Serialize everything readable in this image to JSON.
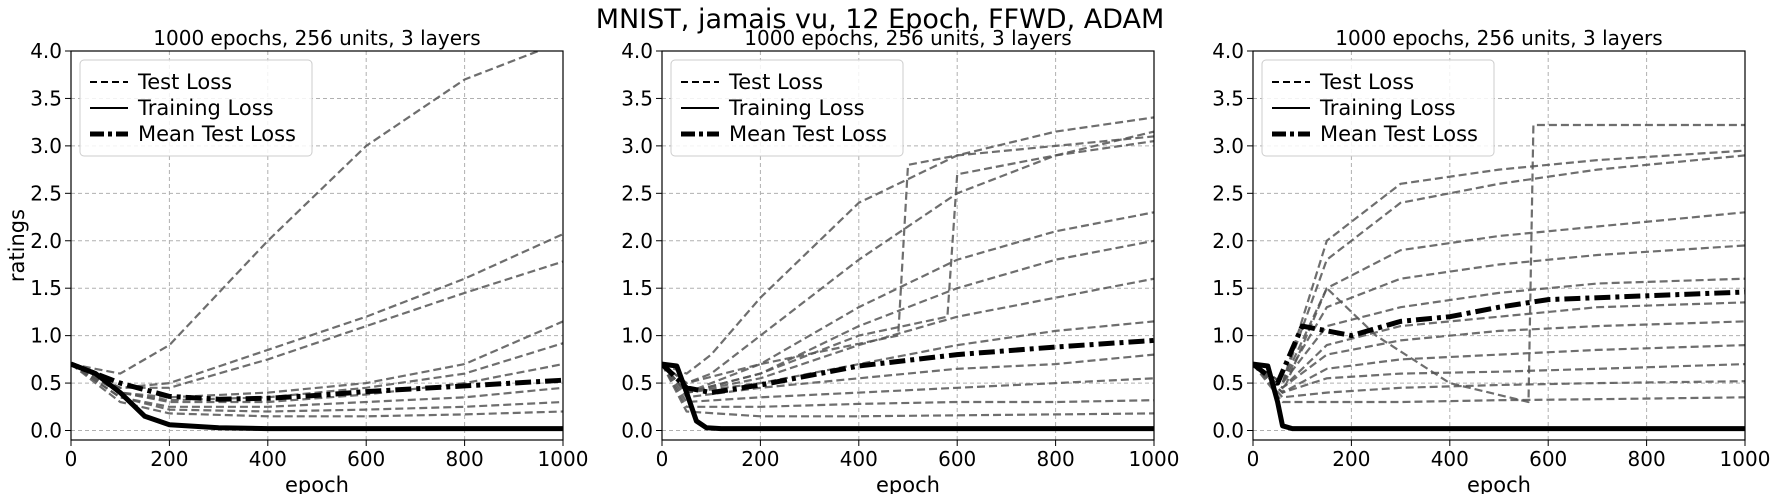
{
  "figure": {
    "title": "MNIST, jamais vu, 12 Epoch, FFWD, ADAM",
    "line_color": "#000000",
    "curve_color": "#555555",
    "grid_color": "#b0b0b0"
  },
  "chart_data": [
    {
      "type": "line",
      "title": "1000 epochs, 256 units, 3 layers",
      "xlabel": "epoch",
      "ylabel": "ratings",
      "xlim": [
        0,
        1000
      ],
      "ylim": [
        -0.1,
        4.0
      ],
      "xticks": [
        "0",
        "200",
        "400",
        "600",
        "800",
        "1000"
      ],
      "yticks": [
        "0.0",
        "0.5",
        "1.0",
        "1.5",
        "2.0",
        "2.5",
        "3.0",
        "3.5",
        "4.0"
      ],
      "grid": true,
      "legend": {
        "placement": "top-left",
        "entries": [
          "Test Loss",
          "Training Loss",
          "Mean Test Loss"
        ]
      },
      "series": [
        {
          "name": "Test Loss",
          "x": [
            0,
            100,
            200,
            400,
            600,
            800,
            1000
          ],
          "y": [
            0.7,
            0.6,
            0.9,
            2.0,
            3.0,
            3.7,
            4.1
          ]
        },
        {
          "name": "Test Loss",
          "x": [
            0,
            100,
            200,
            400,
            600,
            800,
            1000
          ],
          "y": [
            0.7,
            0.45,
            0.5,
            0.85,
            1.2,
            1.6,
            2.07
          ]
        },
        {
          "name": "Test Loss",
          "x": [
            0,
            100,
            200,
            400,
            600,
            800,
            1000
          ],
          "y": [
            0.7,
            0.45,
            0.45,
            0.75,
            1.1,
            1.45,
            1.78
          ]
        },
        {
          "name": "Test Loss",
          "x": [
            0,
            100,
            200,
            400,
            600,
            800,
            1000
          ],
          "y": [
            0.7,
            0.4,
            0.35,
            0.4,
            0.5,
            0.7,
            1.15
          ]
        },
        {
          "name": "Test Loss",
          "x": [
            0,
            100,
            200,
            400,
            600,
            800,
            1000
          ],
          "y": [
            0.7,
            0.4,
            0.32,
            0.35,
            0.45,
            0.6,
            0.92
          ]
        },
        {
          "name": "Test Loss",
          "x": [
            0,
            100,
            200,
            400,
            600,
            800,
            1000
          ],
          "y": [
            0.7,
            0.4,
            0.3,
            0.3,
            0.38,
            0.5,
            0.7
          ]
        },
        {
          "name": "Test Loss",
          "x": [
            0,
            100,
            200,
            400,
            600,
            800,
            1000
          ],
          "y": [
            0.7,
            0.35,
            0.25,
            0.25,
            0.3,
            0.35,
            0.45
          ]
        },
        {
          "name": "Test Loss",
          "x": [
            0,
            100,
            200,
            400,
            600,
            800,
            1000
          ],
          "y": [
            0.7,
            0.35,
            0.22,
            0.2,
            0.22,
            0.25,
            0.3
          ]
        },
        {
          "name": "Test Loss",
          "x": [
            0,
            100,
            200,
            400,
            600,
            800,
            1000
          ],
          "y": [
            0.7,
            0.3,
            0.18,
            0.15,
            0.15,
            0.17,
            0.2
          ]
        },
        {
          "name": "Training Loss",
          "x": [
            0,
            50,
            100,
            150,
            200,
            300,
            400,
            1000
          ],
          "y": [
            0.7,
            0.6,
            0.4,
            0.15,
            0.06,
            0.03,
            0.02,
            0.02
          ]
        },
        {
          "name": "Mean Test Loss",
          "x": [
            0,
            100,
            200,
            300,
            400,
            500,
            600,
            800,
            1000
          ],
          "y": [
            0.7,
            0.5,
            0.36,
            0.33,
            0.34,
            0.37,
            0.41,
            0.47,
            0.53
          ]
        }
      ]
    },
    {
      "type": "line",
      "title": "1000 epochs, 256 units, 3 layers",
      "xlabel": "epoch",
      "ylabel": "",
      "xlim": [
        0,
        1000
      ],
      "ylim": [
        -0.1,
        4.0
      ],
      "xticks": [
        "0",
        "200",
        "400",
        "600",
        "800",
        "1000"
      ],
      "yticks": [
        "0.0",
        "0.5",
        "1.0",
        "1.5",
        "2.0",
        "2.5",
        "3.0",
        "3.5",
        "4.0"
      ],
      "grid": true,
      "legend": {
        "placement": "top-left",
        "entries": [
          "Test Loss",
          "Training Loss",
          "Mean Test Loss"
        ]
      },
      "series": [
        {
          "name": "Test Loss",
          "x": [
            0,
            50,
            100,
            200,
            400,
            600,
            800,
            1000
          ],
          "y": [
            0.7,
            0.6,
            0.8,
            1.4,
            2.4,
            2.9,
            3.15,
            3.3
          ]
        },
        {
          "name": "Test Loss",
          "x": [
            0,
            50,
            100,
            200,
            400,
            600,
            800,
            1000
          ],
          "y": [
            0.7,
            0.5,
            0.6,
            1.0,
            1.8,
            2.5,
            2.9,
            3.15
          ]
        },
        {
          "name": "Test Loss",
          "x": [
            0,
            50,
            200,
            480,
            500,
            600,
            800,
            1000
          ],
          "y": [
            0.7,
            0.5,
            0.7,
            1.0,
            2.8,
            2.9,
            3.0,
            3.1
          ]
        },
        {
          "name": "Test Loss",
          "x": [
            0,
            50,
            200,
            400,
            600,
            800,
            1000
          ],
          "y": [
            0.7,
            0.4,
            0.7,
            1.3,
            1.8,
            2.1,
            2.3
          ]
        },
        {
          "name": "Test Loss",
          "x": [
            0,
            50,
            200,
            400,
            580,
            600,
            800,
            1000
          ],
          "y": [
            0.7,
            0.4,
            0.6,
            1.0,
            1.2,
            2.7,
            2.9,
            3.05
          ]
        },
        {
          "name": "Test Loss",
          "x": [
            0,
            50,
            200,
            400,
            600,
            800,
            1000
          ],
          "y": [
            0.7,
            0.4,
            0.6,
            1.1,
            1.5,
            1.8,
            2.0
          ]
        },
        {
          "name": "Test Loss",
          "x": [
            0,
            50,
            200,
            400,
            600,
            800,
            1000
          ],
          "y": [
            0.7,
            0.4,
            0.55,
            0.9,
            1.2,
            1.4,
            1.6
          ]
        },
        {
          "name": "Test Loss",
          "x": [
            0,
            50,
            200,
            400,
            600,
            800,
            1000
          ],
          "y": [
            0.7,
            0.4,
            0.5,
            0.7,
            0.9,
            1.05,
            1.15
          ]
        },
        {
          "name": "Test Loss",
          "x": [
            0,
            50,
            200,
            400,
            600,
            800,
            1000
          ],
          "y": [
            0.7,
            0.35,
            0.45,
            0.55,
            0.65,
            0.7,
            0.8
          ]
        },
        {
          "name": "Test Loss",
          "x": [
            0,
            50,
            200,
            400,
            600,
            800,
            1000
          ],
          "y": [
            0.7,
            0.3,
            0.35,
            0.4,
            0.45,
            0.5,
            0.55
          ]
        },
        {
          "name": "Test Loss",
          "x": [
            0,
            50,
            200,
            400,
            600,
            800,
            1000
          ],
          "y": [
            0.7,
            0.25,
            0.25,
            0.28,
            0.3,
            0.3,
            0.32
          ]
        },
        {
          "name": "Test Loss",
          "x": [
            0,
            50,
            200,
            400,
            600,
            800,
            1000
          ],
          "y": [
            0.7,
            0.2,
            0.15,
            0.15,
            0.16,
            0.17,
            0.18
          ]
        },
        {
          "name": "Training Loss",
          "x": [
            0,
            30,
            50,
            70,
            90,
            120,
            1000
          ],
          "y": [
            0.7,
            0.68,
            0.4,
            0.1,
            0.03,
            0.02,
            0.02
          ]
        },
        {
          "name": "Mean Test Loss",
          "x": [
            0,
            50,
            100,
            200,
            400,
            600,
            800,
            1000
          ],
          "y": [
            0.7,
            0.45,
            0.4,
            0.48,
            0.68,
            0.8,
            0.88,
            0.95
          ]
        }
      ]
    },
    {
      "type": "line",
      "title": "1000 epochs, 256 units, 3 layers",
      "xlabel": "epoch",
      "ylabel": "",
      "xlim": [
        0,
        1000
      ],
      "ylim": [
        -0.1,
        4.0
      ],
      "xticks": [
        "0",
        "200",
        "400",
        "600",
        "800",
        "1000"
      ],
      "yticks": [
        "0.0",
        "0.5",
        "1.0",
        "1.5",
        "2.0",
        "2.5",
        "3.0",
        "3.5",
        "4.0"
      ],
      "grid": true,
      "legend": {
        "placement": "top-left",
        "entries": [
          "Test Loss",
          "Training Loss",
          "Mean Test Loss"
        ]
      },
      "series": [
        {
          "name": "Test Loss",
          "x": [
            0,
            60,
            150,
            300,
            500,
            700,
            1000
          ],
          "y": [
            0.7,
            0.5,
            1.8,
            2.4,
            2.6,
            2.75,
            2.9
          ]
        },
        {
          "name": "Test Loss",
          "x": [
            0,
            60,
            150,
            300,
            500,
            700,
            1000
          ],
          "y": [
            0.7,
            0.5,
            1.5,
            1.9,
            2.05,
            2.15,
            2.3
          ]
        },
        {
          "name": "Test Loss",
          "x": [
            0,
            60,
            150,
            300,
            500,
            700,
            1000
          ],
          "y": [
            0.7,
            0.5,
            1.3,
            1.6,
            1.75,
            1.85,
            1.95
          ]
        },
        {
          "name": "Test Loss",
          "x": [
            0,
            60,
            150,
            300,
            500,
            700,
            1000
          ],
          "y": [
            0.7,
            0.5,
            1.1,
            1.3,
            1.45,
            1.55,
            1.6
          ]
        },
        {
          "name": "Test Loss",
          "x": [
            0,
            60,
            150,
            300,
            500,
            700,
            1000
          ],
          "y": [
            0.7,
            0.45,
            0.9,
            1.1,
            1.2,
            1.3,
            1.35
          ]
        },
        {
          "name": "Test Loss",
          "x": [
            0,
            60,
            150,
            300,
            500,
            700,
            1000
          ],
          "y": [
            0.7,
            0.45,
            0.8,
            0.95,
            1.05,
            1.1,
            1.15
          ]
        },
        {
          "name": "Test Loss",
          "x": [
            0,
            60,
            150,
            300,
            500,
            700,
            1000
          ],
          "y": [
            0.7,
            0.4,
            0.65,
            0.75,
            0.8,
            0.85,
            0.9
          ]
        },
        {
          "name": "Test Loss",
          "x": [
            0,
            60,
            150,
            300,
            500,
            700,
            1000
          ],
          "y": [
            0.7,
            0.4,
            0.55,
            0.6,
            0.62,
            0.65,
            0.7
          ]
        },
        {
          "name": "Test Loss",
          "x": [
            0,
            60,
            150,
            300,
            500,
            700,
            1000
          ],
          "y": [
            0.7,
            0.35,
            0.4,
            0.45,
            0.48,
            0.5,
            0.52
          ]
        },
        {
          "name": "Test Loss",
          "x": [
            0,
            60,
            150,
            300,
            500,
            700,
            1000
          ],
          "y": [
            0.7,
            0.3,
            0.3,
            0.3,
            0.32,
            0.33,
            0.35
          ]
        },
        {
          "name": "Test Loss",
          "x": [
            0,
            60,
            150,
            250,
            400,
            560,
            570,
            1000
          ],
          "y": [
            0.7,
            0.4,
            1.5,
            1.0,
            0.5,
            0.3,
            3.22,
            3.22
          ]
        },
        {
          "name": "Test Loss",
          "x": [
            0,
            60,
            150,
            300,
            500,
            700,
            1000
          ],
          "y": [
            0.7,
            0.5,
            2.0,
            2.6,
            2.75,
            2.85,
            2.95
          ]
        },
        {
          "name": "Training Loss",
          "x": [
            0,
            30,
            50,
            60,
            80,
            1000
          ],
          "y": [
            0.7,
            0.68,
            0.3,
            0.05,
            0.02,
            0.02
          ]
        },
        {
          "name": "Mean Test Loss",
          "x": [
            0,
            50,
            100,
            200,
            300,
            400,
            500,
            600,
            800,
            1000
          ],
          "y": [
            0.7,
            0.5,
            1.1,
            1.0,
            1.15,
            1.2,
            1.3,
            1.38,
            1.42,
            1.46
          ]
        }
      ]
    }
  ]
}
